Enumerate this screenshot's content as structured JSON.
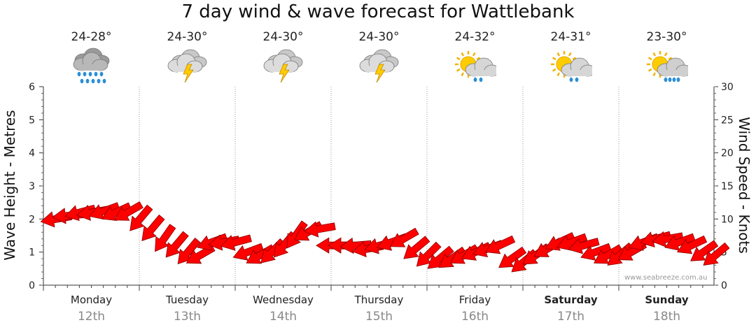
{
  "chart_data": {
    "type": "line",
    "title": "7 day wind & wave forecast for Wattlebank",
    "y_left": {
      "label": "Wave Height - Metres",
      "range": [
        0,
        6
      ],
      "ticks": [
        "0",
        "1",
        "2",
        "3",
        "4",
        "5",
        "6"
      ]
    },
    "y_right": {
      "label": "Wind Speed - Knots",
      "range": [
        0,
        30
      ],
      "ticks": [
        "0",
        "5",
        "10",
        "15",
        "20",
        "25",
        "30"
      ]
    },
    "grid": "dotted vertical",
    "days": [
      {
        "day": "Monday",
        "date": "12th",
        "temp": "24-28°",
        "icon": "rain-cloud-icon",
        "bold": false
      },
      {
        "day": "Tuesday",
        "date": "13th",
        "temp": "24-30°",
        "icon": "storm-cloud-icon",
        "bold": false
      },
      {
        "day": "Wednesday",
        "date": "14th",
        "temp": "24-30°",
        "icon": "storm-cloud-icon",
        "bold": false
      },
      {
        "day": "Thursday",
        "date": "15th",
        "temp": "24-30°",
        "icon": "storm-cloud-icon",
        "bold": false
      },
      {
        "day": "Friday",
        "date": "16th",
        "temp": "24-32°",
        "icon": "sun-cloud-showers-icon",
        "bold": false
      },
      {
        "day": "Saturday",
        "date": "17th",
        "temp": "24-31°",
        "icon": "sun-cloud-showers-icon",
        "bold": true
      },
      {
        "day": "Sunday",
        "date": "18th",
        "temp": "23-30°",
        "icon": "sun-cloud-rain-icon",
        "bold": true
      }
    ],
    "wind_series": {
      "unit": "knots",
      "points_per_day": 8,
      "speed": [
        10.0,
        10.5,
        11.0,
        11.0,
        11.2,
        11.0,
        11.0,
        10.0,
        8.5,
        7.0,
        6.0,
        5.0,
        4.5,
        6.5,
        6.5,
        6.5,
        5.0,
        4.5,
        5.0,
        6.0,
        7.5,
        8.0,
        8.5,
        6.0,
        6.0,
        6.0,
        5.5,
        6.0,
        6.5,
        7.0,
        5.5,
        4.5,
        4.0,
        4.0,
        4.5,
        5.0,
        5.5,
        6.0,
        4.0,
        3.5,
        4.5,
        5.5,
        6.5,
        6.5,
        6.0,
        5.0,
        4.5,
        4.5,
        5.0,
        6.5,
        7.0,
        7.0,
        6.5,
        6.0,
        5.0,
        4.5
      ],
      "direction_deg": [
        80,
        85,
        75,
        80,
        70,
        65,
        60,
        40,
        40,
        35,
        40,
        40,
        60,
        70,
        80,
        75,
        70,
        60,
        45,
        40,
        35,
        60,
        80,
        90,
        90,
        85,
        80,
        75,
        70,
        60,
        50,
        45,
        50,
        55,
        60,
        65,
        70,
        65,
        55,
        50,
        55,
        60,
        65,
        70,
        75,
        70,
        60,
        50,
        60,
        70,
        75,
        80,
        70,
        65,
        55,
        50
      ],
      "colour": "#ff0000"
    }
  },
  "watermark": "www.seabreeze.com.au"
}
